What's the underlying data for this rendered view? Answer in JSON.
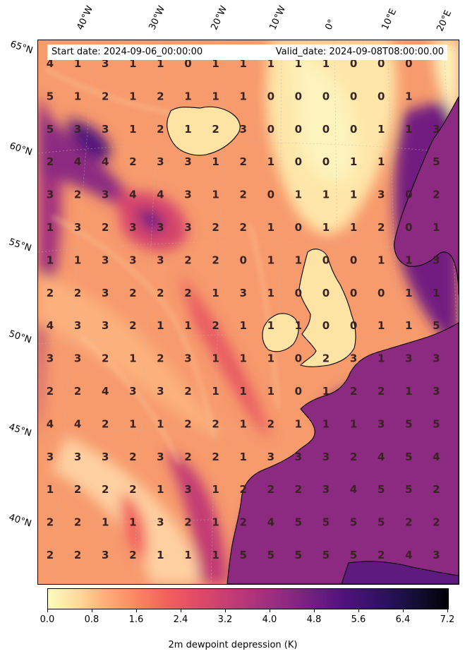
{
  "header": {
    "start_date": "Start date: 2024-09-06_00:00:00",
    "valid_date": "Valid_date: 2024-09-08T08:00:00.00"
  },
  "lon_labels": [
    "40°W",
    "30°W",
    "20°W",
    "10°W",
    "0°",
    "10°E",
    "20°E"
  ],
  "lat_labels": [
    "65°N",
    "60°N",
    "55°N",
    "50°N",
    "45°N",
    "40°N"
  ],
  "colorbar": {
    "title": "2m dewpoint depression (K)",
    "colormap": "magma_r",
    "range": [
      0.0,
      7.2
    ],
    "ticks": [
      "0.0",
      "0.8",
      "1.6",
      "2.4",
      "3.2",
      "4.0",
      "4.8",
      "5.6",
      "6.4",
      "7.2"
    ]
  },
  "colors": {
    "low": "#fcfdbf",
    "mid": "#de4968",
    "high": "#000004",
    "coastline": "#000000"
  },
  "grid_values": [
    [
      "4",
      "1",
      "3",
      "1",
      "1",
      "0",
      "1",
      "1",
      "1",
      "1",
      "1",
      "0",
      "0",
      "0"
    ],
    [
      "5",
      "1",
      "2",
      "1",
      "2",
      "1",
      "1",
      "1",
      "0",
      "0",
      "0",
      "0",
      "0",
      "1"
    ],
    [
      "5",
      "3",
      "3",
      "1",
      "2",
      "1",
      "2",
      "3",
      "0",
      "0",
      "0",
      "0",
      "1",
      "1",
      "3"
    ],
    [
      "2",
      "4",
      "4",
      "2",
      "3",
      "3",
      "1",
      "2",
      "1",
      "0",
      "0",
      "1",
      "1",
      "",
      "5"
    ],
    [
      "3",
      "2",
      "3",
      "4",
      "4",
      "3",
      "1",
      "2",
      "0",
      "1",
      "1",
      "1",
      "3",
      "0",
      "2"
    ],
    [
      "1",
      "3",
      "2",
      "3",
      "3",
      "3",
      "2",
      "2",
      "1",
      "0",
      "1",
      "1",
      "2",
      "0",
      "1"
    ],
    [
      "1",
      "1",
      "3",
      "3",
      "3",
      "2",
      "2",
      "0",
      "1",
      "1",
      "0",
      "0",
      "1",
      "1",
      "3"
    ],
    [
      "2",
      "2",
      "3",
      "2",
      "2",
      "2",
      "1",
      "3",
      "1",
      "0",
      "0",
      "0",
      "0",
      "1",
      "1"
    ],
    [
      "4",
      "3",
      "3",
      "2",
      "1",
      "1",
      "2",
      "1",
      "1",
      "1",
      "0",
      "0",
      "1",
      "1",
      "5"
    ],
    [
      "3",
      "3",
      "2",
      "1",
      "2",
      "3",
      "1",
      "1",
      "1",
      "0",
      "2",
      "3",
      "1",
      "3",
      "3"
    ],
    [
      "2",
      "2",
      "4",
      "3",
      "3",
      "2",
      "1",
      "1",
      "1",
      "0",
      "1",
      "2",
      "2",
      "1",
      "3"
    ],
    [
      "4",
      "4",
      "2",
      "1",
      "1",
      "2",
      "2",
      "1",
      "2",
      "1",
      "1",
      "1",
      "3",
      "5",
      "5"
    ],
    [
      "3",
      "3",
      "3",
      "2",
      "3",
      "2",
      "2",
      "1",
      "3",
      "3",
      "3",
      "2",
      "4",
      "5",
      "4"
    ],
    [
      "1",
      "2",
      "2",
      "2",
      "1",
      "3",
      "1",
      "2",
      "2",
      "2",
      "3",
      "4",
      "5",
      "5",
      "2"
    ],
    [
      "2",
      "2",
      "1",
      "1",
      "3",
      "2",
      "1",
      "2",
      "4",
      "5",
      "5",
      "5",
      "5",
      "2",
      "2"
    ],
    [
      "2",
      "2",
      "3",
      "2",
      "1",
      "1",
      "1",
      "5",
      "5",
      "5",
      "5",
      "5",
      "2",
      "4",
      "3"
    ]
  ]
}
